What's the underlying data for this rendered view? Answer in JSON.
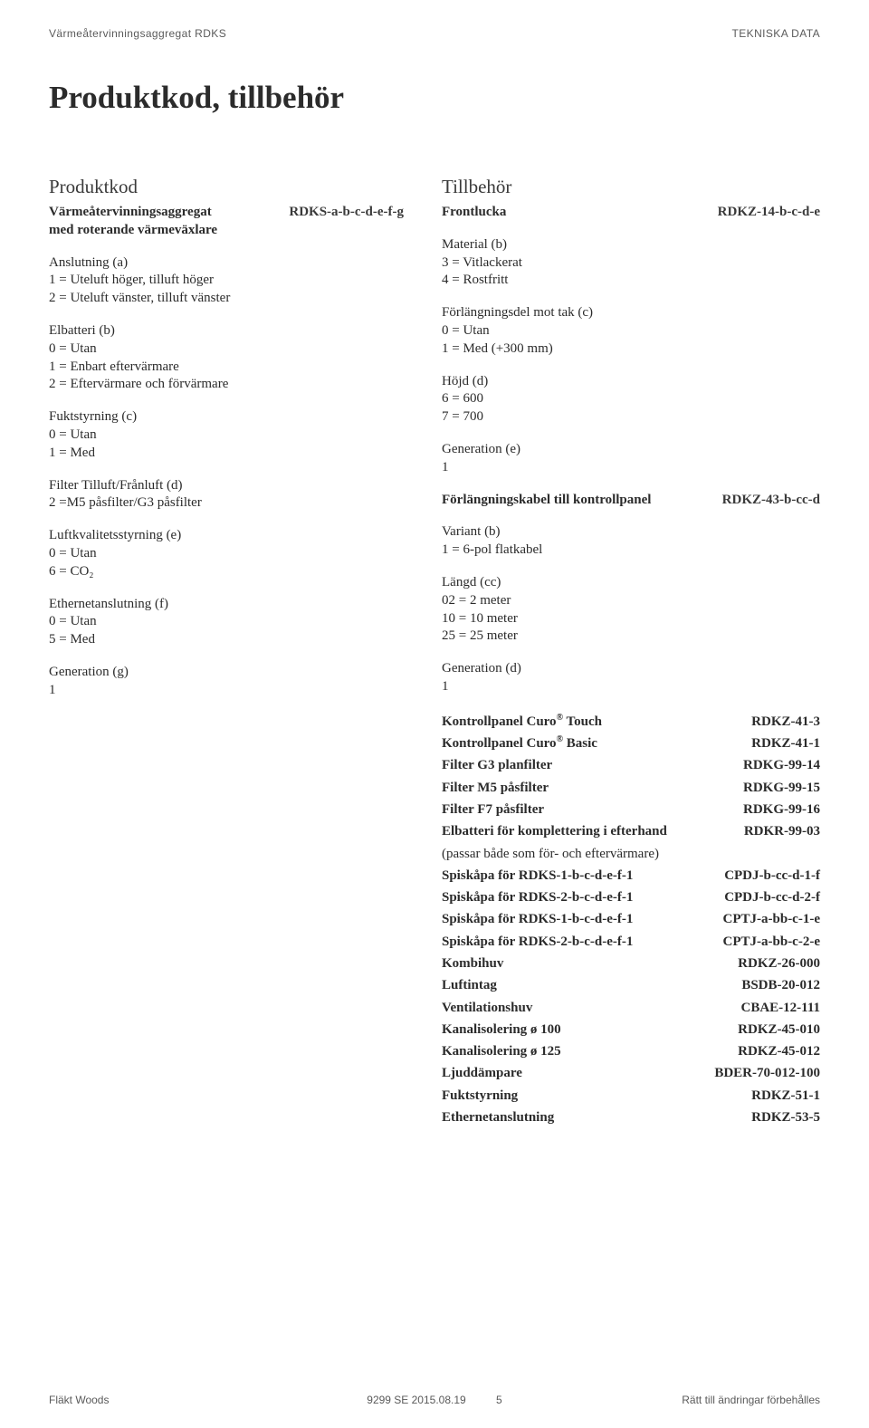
{
  "header": {
    "left": "Värmeåtervinningsaggregat RDKS",
    "right": "TEKNISKA DATA"
  },
  "title": "Produktkod, tillbehör",
  "left": {
    "heading": "Produktkod",
    "intro_label_1": "Värmeåtervinningsaggregat",
    "intro_label_2": "med roterande värmeväxlare",
    "intro_code": "RDKS-a-b-c-d-e-f-g",
    "groups": [
      {
        "t": "Anslutning (a)",
        "l": [
          "1 = Uteluft höger, tilluft höger",
          "2 = Uteluft vänster, tilluft vänster"
        ]
      },
      {
        "t": "Elbatteri (b)",
        "l": [
          "0 = Utan",
          "1 = Enbart eftervärmare",
          "2 = Eftervärmare och förvärmare"
        ]
      },
      {
        "t": "Fuktstyrning (c)",
        "l": [
          "0 = Utan",
          "1 = Med"
        ]
      },
      {
        "t": "Filter Tilluft/Frånluft (d)",
        "l": [
          "2 =M5 påsfilter/G3 påsfilter"
        ]
      },
      {
        "t": "Luftkvalitetsstyrning (e)",
        "l": [
          "0 = Utan",
          "6 = CO₂"
        ]
      },
      {
        "t": "Ethernetanslutning (f)",
        "l": [
          "0 = Utan",
          "5 =  Med"
        ]
      },
      {
        "t": "Generation (g)",
        "l": [
          "1"
        ]
      }
    ]
  },
  "right": {
    "heading": "Tillbehör",
    "front_label": "Frontlucka",
    "front_code": "RDKZ-14-b-c-d-e",
    "groups1": [
      {
        "t": "Material (b)",
        "l": [
          "3 = Vitlackerat",
          "4 = Rostfritt"
        ]
      },
      {
        "t": "Förlängningsdel mot tak (c)",
        "l": [
          "0 = Utan",
          "1 = Med (+300 mm)"
        ]
      },
      {
        "t": "Höjd (d)",
        "l": [
          "6 = 600",
          "7 = 700"
        ]
      },
      {
        "t": "Generation (e)",
        "l": [
          "1"
        ]
      }
    ],
    "cable_label": "Förlängningskabel till kontrollpanel",
    "cable_code": "RDKZ-43-b-cc-d",
    "groups2": [
      {
        "t": "Variant (b)",
        "l": [
          "1 = 6-pol flatkabel"
        ]
      },
      {
        "t": "Längd (cc)",
        "l": [
          "02 =   2 meter",
          "10 = 10 meter",
          "25 = 25 meter"
        ]
      },
      {
        "t": "Generation (d)",
        "l": [
          "1"
        ]
      }
    ],
    "table": [
      {
        "label": "Kontrollpanel Curo® Touch",
        "code": "RDKZ-41-3"
      },
      {
        "label": "Kontrollpanel Curo® Basic",
        "code": "RDKZ-41-1"
      },
      {
        "label": "Filter G3 planfilter",
        "code": "RDKG-99-14"
      },
      {
        "label": "Filter M5 påsfilter",
        "code": "RDKG-99-15"
      },
      {
        "label": "Filter F7 påsfilter",
        "code": "RDKG-99-16"
      },
      {
        "label": "Elbatteri för komplettering i efterhand",
        "code": "RDKR-99-03"
      },
      {
        "note": "(passar både som för- och eftervärmare)"
      },
      {
        "label": "Spiskåpa för RDKS-1-b-c-d-e-f-1",
        "code": "CPDJ-b-cc-d-1-f"
      },
      {
        "label": "Spiskåpa för RDKS-2-b-c-d-e-f-1",
        "code": "CPDJ-b-cc-d-2-f"
      },
      {
        "label": "Spiskåpa för RDKS-1-b-c-d-e-f-1",
        "code": "CPTJ-a-bb-c-1-e"
      },
      {
        "label": "Spiskåpa för RDKS-2-b-c-d-e-f-1",
        "code": "CPTJ-a-bb-c-2-e"
      },
      {
        "label": "Kombihuv",
        "code": "RDKZ-26-000"
      },
      {
        "label": "Luftintag",
        "code": "BSDB-20-012"
      },
      {
        "label": "Ventilationshuv",
        "code": "CBAE-12-111"
      },
      {
        "label": "Kanalisolering ø 100",
        "code": "RDKZ-45-010"
      },
      {
        "label": "Kanalisolering ø 125",
        "code": "RDKZ-45-012"
      },
      {
        "label": "Ljuddämpare",
        "code": "BDER-70-012-100"
      },
      {
        "label": "Fuktstyrning",
        "code": "RDKZ-51-1"
      },
      {
        "label": "Ethernetanslutning",
        "code": "RDKZ-53-5"
      }
    ]
  },
  "footer": {
    "left": "Fläkt Woods",
    "center": "9299 SE 2015.08.19",
    "page": "5",
    "right": "Rätt till ändringar förbehålles"
  }
}
